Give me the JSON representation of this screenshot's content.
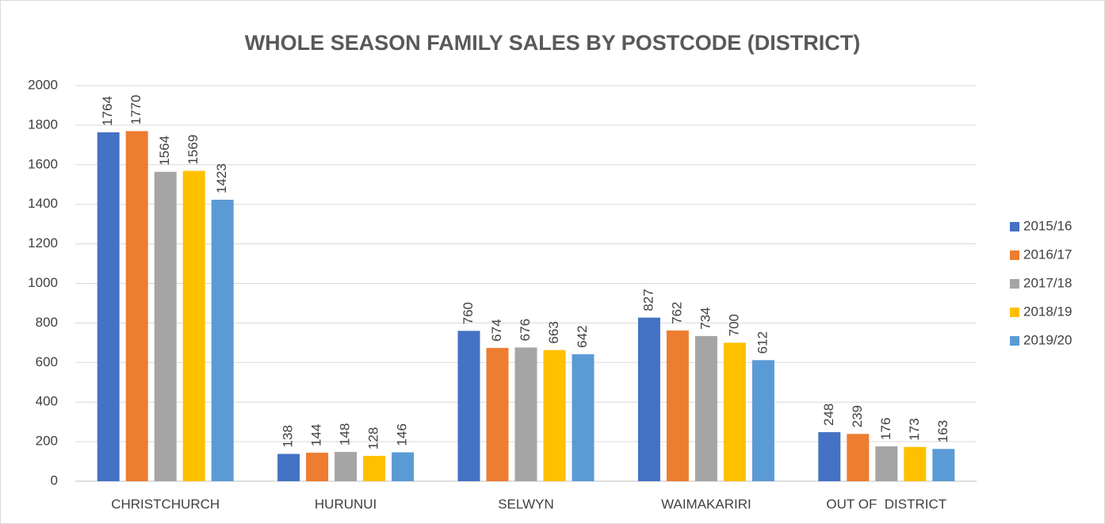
{
  "chart_data": {
    "type": "bar",
    "title": "WHOLE SEASON FAMILY SALES BY POSTCODE (DISTRICT)",
    "categories": [
      "CHRISTCHURCH",
      "HURUNUI",
      "SELWYN",
      "WAIMAKARIRI",
      "OUT OF  DISTRICT"
    ],
    "series": [
      {
        "name": "2015/16",
        "color": "#4472c4",
        "values": [
          1764,
          138,
          760,
          827,
          248
        ]
      },
      {
        "name": "2016/17",
        "color": "#ed7d31",
        "values": [
          1770,
          144,
          674,
          762,
          239
        ]
      },
      {
        "name": "2017/18",
        "color": "#a5a5a5",
        "values": [
          1564,
          148,
          676,
          734,
          176
        ]
      },
      {
        "name": "2018/19",
        "color": "#ffc000",
        "values": [
          1569,
          128,
          663,
          700,
          173
        ]
      },
      {
        "name": "2019/20",
        "color": "#5b9bd5",
        "values": [
          1423,
          146,
          642,
          612,
          163
        ]
      }
    ],
    "ylim": [
      0,
      2000
    ],
    "yticks": [
      0,
      200,
      400,
      600,
      800,
      1000,
      1200,
      1400,
      1600,
      1800,
      2000
    ],
    "grid": true,
    "legend": "right"
  }
}
